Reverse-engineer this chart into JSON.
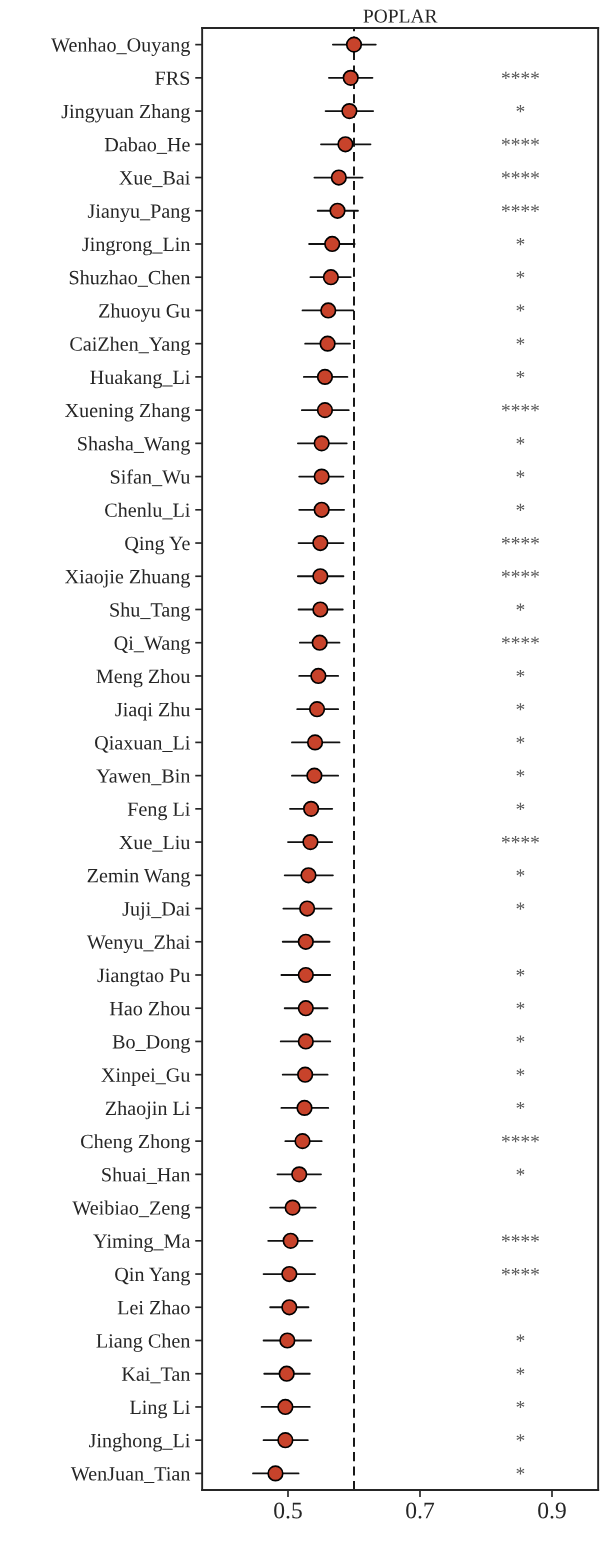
{
  "chart_data": {
    "type": "scatter",
    "orientation": "horizontal",
    "title": "POPLAR",
    "categories": [
      "Wenhao_Ouyang",
      "FRS",
      "Jingyuan Zhang",
      "Dabao_He",
      "Xue_Bai",
      "Jianyu_Pang",
      "Jingrong_Lin",
      "Shuzhao_Chen",
      "Zhuoyu Gu",
      "CaiZhen_Yang",
      "Huakang_Li",
      "Xuening Zhang",
      "Shasha_Wang",
      "Sifan_Wu",
      "Chenlu_Li",
      "Qing Ye",
      "Xiaojie Zhuang",
      "Shu_Tang",
      "Qi_Wang",
      "Meng Zhou",
      "Jiaqi Zhu",
      "Qiaxuan_Li",
      "Yawen_Bin",
      "Feng Li",
      "Xue_Liu",
      "Zemin Wang",
      "Juji_Dai",
      "Wenyu_Zhai",
      "Jiangtao Pu",
      "Hao Zhou",
      "Bo_Dong",
      "Xinpei_Gu",
      "Zhaojin Li",
      "Cheng Zhong",
      "Shuai_Han",
      "Weibiao_Zeng",
      "Yiming_Ma",
      "Qin Yang",
      "Lei Zhao",
      "Liang Chen",
      "Kai_Tan",
      "Ling Li",
      "Jinghong_Li",
      "WenJuan_Tian"
    ],
    "values": [
      0.6,
      0.595,
      0.593,
      0.587,
      0.577,
      0.575,
      0.567,
      0.565,
      0.561,
      0.56,
      0.556,
      0.556,
      0.551,
      0.551,
      0.551,
      0.549,
      0.549,
      0.549,
      0.548,
      0.546,
      0.544,
      0.541,
      0.54,
      0.535,
      0.534,
      0.531,
      0.529,
      0.527,
      0.527,
      0.527,
      0.527,
      0.526,
      0.525,
      0.522,
      0.517,
      0.507,
      0.504,
      0.502,
      0.502,
      0.499,
      0.498,
      0.496,
      0.496,
      0.481
    ],
    "errors": [
      [
        0.568,
        0.633
      ],
      [
        0.562,
        0.628
      ],
      [
        0.557,
        0.629
      ],
      [
        0.55,
        0.625
      ],
      [
        0.54,
        0.613
      ],
      [
        0.545,
        0.606
      ],
      [
        0.532,
        0.601
      ],
      [
        0.534,
        0.595
      ],
      [
        0.522,
        0.599
      ],
      [
        0.526,
        0.594
      ],
      [
        0.524,
        0.59
      ],
      [
        0.521,
        0.592
      ],
      [
        0.515,
        0.589
      ],
      [
        0.517,
        0.584
      ],
      [
        0.517,
        0.585
      ],
      [
        0.516,
        0.584
      ],
      [
        0.515,
        0.584
      ],
      [
        0.516,
        0.583
      ],
      [
        0.518,
        0.578
      ],
      [
        0.517,
        0.576
      ],
      [
        0.514,
        0.576
      ],
      [
        0.506,
        0.578
      ],
      [
        0.506,
        0.576
      ],
      [
        0.503,
        0.567
      ],
      [
        0.5,
        0.567
      ],
      [
        0.495,
        0.568
      ],
      [
        0.493,
        0.566
      ],
      [
        0.492,
        0.563
      ],
      [
        0.49,
        0.564
      ],
      [
        0.495,
        0.56
      ],
      [
        0.489,
        0.564
      ],
      [
        0.492,
        0.56
      ],
      [
        0.49,
        0.561
      ],
      [
        0.496,
        0.551
      ],
      [
        0.484,
        0.55
      ],
      [
        0.473,
        0.542
      ],
      [
        0.47,
        0.537
      ],
      [
        0.463,
        0.541
      ],
      [
        0.473,
        0.531
      ],
      [
        0.463,
        0.535
      ],
      [
        0.464,
        0.533
      ],
      [
        0.46,
        0.533
      ],
      [
        0.463,
        0.53
      ],
      [
        0.447,
        0.516
      ]
    ],
    "color": "#c8432b",
    "marker": "circle",
    "xlim": [
      0.37,
      0.97
    ],
    "xticks": [
      0.5,
      0.7,
      0.9
    ],
    "grid": false,
    "ref_lines": [
      {
        "axis": "x",
        "value": 0.6,
        "color": "#000000",
        "line_style": "dashed"
      }
    ],
    "y2_categories": [
      null,
      "****",
      "*",
      "****",
      "****",
      "****",
      "*",
      "*",
      "*",
      "*",
      "*",
      "****",
      "*",
      "*",
      "*",
      "****",
      "****",
      "*",
      "****",
      "*",
      "*",
      "*",
      "*",
      "*",
      "****",
      "*",
      "*",
      null,
      "*",
      "*",
      "*",
      "*",
      "*",
      "****",
      "*",
      null,
      "****",
      "****",
      null,
      "*",
      "*",
      "*",
      "*",
      "*"
    ]
  }
}
